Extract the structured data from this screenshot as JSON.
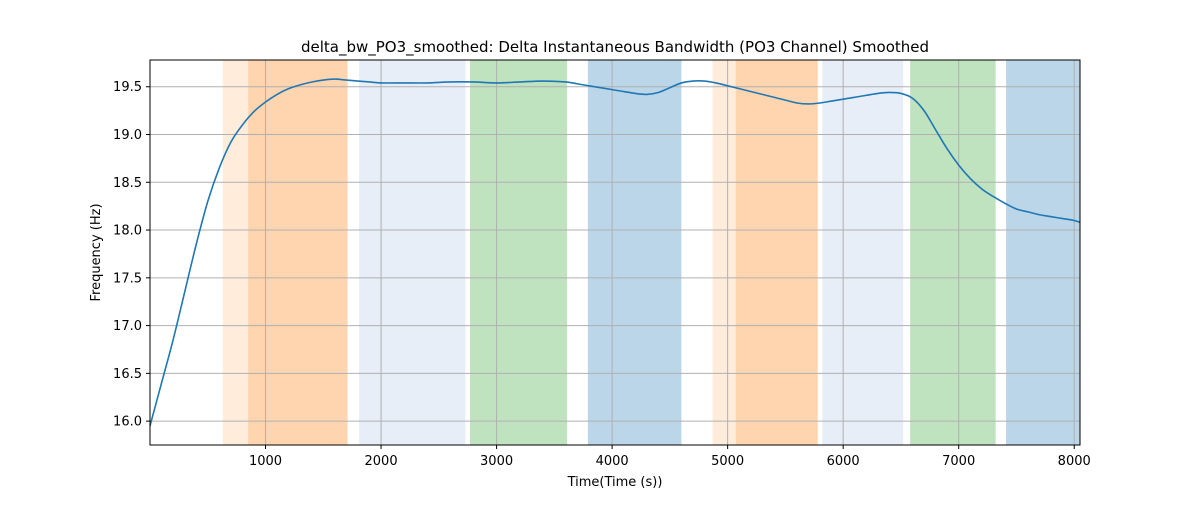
{
  "chart_data": {
    "type": "line",
    "title": "delta_bw_PO3_smoothed: Delta Instantaneous Bandwidth (PO3 Channel) Smoothed",
    "xlabel": "Time(Time (s))",
    "ylabel": "Frequency (Hz)",
    "xlim": [
      0,
      8050
    ],
    "ylim": [
      15.75,
      19.78
    ],
    "grid": true,
    "x_ticks": [
      1000,
      2000,
      3000,
      4000,
      5000,
      6000,
      7000,
      8000
    ],
    "y_ticks": [
      16.0,
      16.5,
      17.0,
      17.5,
      18.0,
      18.5,
      19.0,
      19.5
    ],
    "x_tick_labels": [
      "1000",
      "2000",
      "3000",
      "4000",
      "5000",
      "6000",
      "7000",
      "8000"
    ],
    "y_tick_labels": [
      "16.0",
      "16.5",
      "17.0",
      "17.5",
      "18.0",
      "18.5",
      "19.0",
      "19.5"
    ],
    "line_color": "#1f77b4",
    "series": [
      {
        "x": [
          0,
          100,
          200,
          300,
          400,
          500,
          600,
          700,
          800,
          900,
          1000,
          1100,
          1200,
          1300,
          1400,
          1500,
          1600,
          1700,
          1800,
          1900,
          2000,
          2200,
          2400,
          2600,
          2800,
          3000,
          3200,
          3400,
          3600,
          3700,
          3800,
          3900,
          4000,
          4100,
          4200,
          4300,
          4400,
          4500,
          4600,
          4700,
          4800,
          4900,
          5000,
          5100,
          5200,
          5300,
          5400,
          5500,
          5600,
          5700,
          5800,
          5900,
          6000,
          6100,
          6200,
          6300,
          6400,
          6500,
          6600,
          6700,
          6800,
          6900,
          7000,
          7100,
          7200,
          7300,
          7400,
          7500,
          7600,
          7700,
          7800,
          7900,
          8000,
          8050
        ],
        "y": [
          15.95,
          16.4,
          16.85,
          17.35,
          17.85,
          18.3,
          18.65,
          18.92,
          19.1,
          19.24,
          19.34,
          19.42,
          19.48,
          19.52,
          19.55,
          19.57,
          19.58,
          19.57,
          19.56,
          19.55,
          19.54,
          19.54,
          19.54,
          19.55,
          19.55,
          19.54,
          19.55,
          19.56,
          19.55,
          19.53,
          19.51,
          19.49,
          19.47,
          19.45,
          19.43,
          19.42,
          19.44,
          19.49,
          19.54,
          19.56,
          19.56,
          19.54,
          19.51,
          19.48,
          19.45,
          19.42,
          19.39,
          19.36,
          19.33,
          19.32,
          19.33,
          19.35,
          19.37,
          19.39,
          19.41,
          19.43,
          19.44,
          19.43,
          19.38,
          19.25,
          19.05,
          18.85,
          18.68,
          18.54,
          18.43,
          18.35,
          18.28,
          18.22,
          18.19,
          18.16,
          18.14,
          18.12,
          18.1,
          18.08
        ]
      }
    ],
    "bands": [
      {
        "start": 630,
        "end": 850,
        "color": "#ff7f0e",
        "opacity": 0.15
      },
      {
        "start": 850,
        "end": 1710,
        "color": "#ff7f0e",
        "opacity": 0.33
      },
      {
        "start": 1810,
        "end": 2730,
        "color": "#aec7e8",
        "opacity": 0.3
      },
      {
        "start": 2770,
        "end": 3610,
        "color": "#2ca02c",
        "opacity": 0.3
      },
      {
        "start": 3790,
        "end": 4600,
        "color": "#1f77b4",
        "opacity": 0.3
      },
      {
        "start": 4870,
        "end": 5070,
        "color": "#ff7f0e",
        "opacity": 0.15
      },
      {
        "start": 5070,
        "end": 5780,
        "color": "#ff7f0e",
        "opacity": 0.33
      },
      {
        "start": 5820,
        "end": 6520,
        "color": "#aec7e8",
        "opacity": 0.3
      },
      {
        "start": 6580,
        "end": 7320,
        "color": "#2ca02c",
        "opacity": 0.3
      },
      {
        "start": 7410,
        "end": 8050,
        "color": "#1f77b4",
        "opacity": 0.3
      }
    ]
  }
}
